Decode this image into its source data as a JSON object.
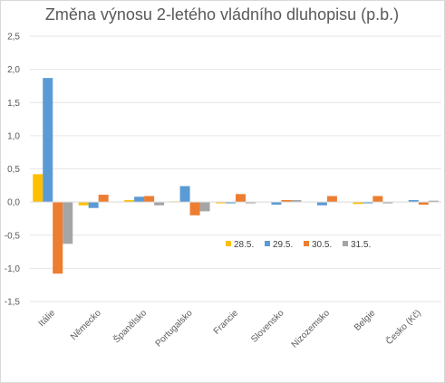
{
  "chart_data": {
    "type": "bar",
    "title": "Změna výnosu 2-letého vládního dluhopisu (p.b.)",
    "categories": [
      "Itálie",
      "Německo",
      "Španělsko",
      "Portugalsko",
      "Francie",
      "Slovensko",
      "Nizozemsko",
      "Belgie",
      "Česko (Kč)"
    ],
    "series": [
      {
        "name": "28.5.",
        "color": "#FFC000",
        "values": [
          0.42,
          -0.05,
          0.03,
          0.01,
          -0.02,
          0.0,
          0.0,
          -0.03,
          0.0
        ]
      },
      {
        "name": "29.5.",
        "color": "#5B9BD5",
        "values": [
          1.87,
          -0.09,
          0.08,
          0.24,
          -0.02,
          -0.04,
          -0.05,
          -0.02,
          0.03
        ]
      },
      {
        "name": "30.5.",
        "color": "#ED7D31",
        "values": [
          -1.08,
          0.11,
          0.09,
          -0.2,
          0.12,
          0.03,
          0.09,
          0.09,
          -0.04
        ]
      },
      {
        "name": "31.5.",
        "color": "#A5A5A5",
        "values": [
          -0.63,
          0.0,
          -0.05,
          -0.14,
          -0.02,
          0.03,
          0.0,
          -0.02,
          0.02
        ]
      }
    ],
    "y_ticks": [
      "2,5",
      "2,0",
      "1,5",
      "1,0",
      "0,5",
      "0,0",
      "-0,5",
      "-1,0",
      "-1,5"
    ],
    "ylim": [
      -1.5,
      2.5
    ],
    "grid": true,
    "legend_position": "inside-bottom-right",
    "xlabel": "",
    "ylabel": ""
  }
}
